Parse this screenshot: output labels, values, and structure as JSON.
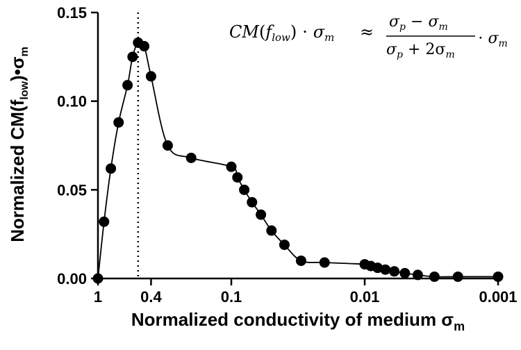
{
  "chart_data": {
    "type": "scatter",
    "xscale": "log-reversed",
    "xlim": [
      1,
      0.001
    ],
    "ylim": [
      0,
      0.15
    ],
    "xticks": [
      {
        "value": 1,
        "label": "1"
      },
      {
        "value": 0.4,
        "label": "0.4"
      },
      {
        "value": 0.1,
        "label": "0.1"
      },
      {
        "value": 0.01,
        "label": "0.01"
      },
      {
        "value": 0.001,
        "label": "0.001"
      }
    ],
    "yticks": [
      {
        "value": 0,
        "label": "0.00"
      },
      {
        "value": 0.05,
        "label": "0.05"
      },
      {
        "value": 0.1,
        "label": "0.10"
      },
      {
        "value": 0.15,
        "label": "0.15"
      }
    ],
    "xlabel": "Normalized conductivity of medium σ",
    "xlabel_sub": "m",
    "ylabel_pre": "Normalized CM(f",
    "ylabel_sub1": "low",
    "ylabel_mid": ")•σ",
    "ylabel_sub2": "m",
    "reference_line_x": 0.5,
    "grid": false,
    "legend": "none",
    "series": [
      {
        "x": [
          1.0,
          0.9,
          0.8,
          0.7,
          0.6,
          0.55,
          0.5,
          0.45,
          0.4,
          0.3,
          0.2,
          0.1,
          0.09,
          0.08,
          0.07,
          0.06,
          0.05,
          0.04,
          0.03,
          0.02,
          0.01,
          0.009,
          0.008,
          0.007,
          0.006,
          0.005,
          0.004,
          0.003,
          0.002,
          0.001
        ],
        "y": [
          0.0,
          0.032,
          0.062,
          0.088,
          0.109,
          0.125,
          0.133,
          0.131,
          0.114,
          0.075,
          0.068,
          0.063,
          0.057,
          0.05,
          0.043,
          0.036,
          0.027,
          0.019,
          0.01,
          0.009,
          0.008,
          0.007,
          0.006,
          0.005,
          0.004,
          0.003,
          0.002,
          0.001,
          0.001,
          0.001
        ]
      }
    ],
    "annotation": {
      "lhs_cm": "CM",
      "lhs_f": "f",
      "lhs_f_sub": "low",
      "lhs_dot_sigma": "⋅ σ",
      "lhs_sigma_sub": "m",
      "approx": "≈",
      "num_sigma1": "σ",
      "num_sub1": "p",
      "num_minus": "−",
      "num_sigma2": "σ",
      "num_sub2": "m",
      "den_sigma1": "σ",
      "den_sub1": "p",
      "den_plus": "+ 2σ",
      "den_sub2": "m",
      "rhs_dot_sigma": "⋅ σ",
      "rhs_sub": "m"
    }
  }
}
